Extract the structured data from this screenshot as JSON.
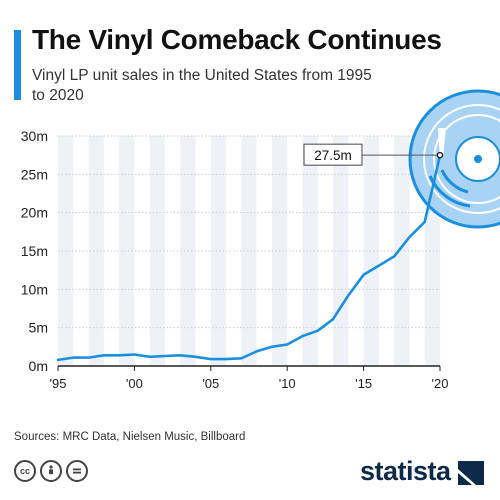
{
  "header": {
    "title": "The Vinyl Comeback Continues",
    "subtitle": "Vinyl LP unit sales in the United States from 1995 to 2020"
  },
  "footer": {
    "source": "Sources: MRC Data, Nielsen Music, Billboard",
    "license_icons": [
      "cc",
      "by",
      "nd"
    ],
    "brand": "statista"
  },
  "colors": {
    "accent": "#1a8fe0",
    "line": "#1a8fe0",
    "band": "#eef1f8",
    "vinyl_light": "#a9d3f5"
  },
  "chart_data": {
    "type": "line",
    "xlim": [
      1995,
      2020
    ],
    "ylim": [
      0,
      30
    ],
    "x_tick_values": [
      1995,
      2000,
      2005,
      2010,
      2015,
      2020
    ],
    "x_tick_labels": [
      "'95",
      "'00",
      "'05",
      "'10",
      "'15",
      "'20"
    ],
    "y_tick_values": [
      0,
      5,
      10,
      15,
      20,
      25,
      30
    ],
    "y_tick_labels": [
      "0m",
      "5m",
      "10m",
      "15m",
      "20m",
      "25m",
      "30m"
    ],
    "grid": true,
    "series": [
      {
        "x": [
          1995,
          1996,
          1997,
          1998,
          1999,
          2000,
          2001,
          2002,
          2003,
          2004,
          2005,
          2006,
          2007,
          2008,
          2009,
          2010,
          2011,
          2012,
          2013,
          2014,
          2015,
          2016,
          2017,
          2018,
          2019,
          2020
        ],
        "values": [
          0.8,
          1.1,
          1.1,
          1.4,
          1.4,
          1.5,
          1.2,
          1.3,
          1.4,
          1.2,
          0.9,
          0.9,
          1.0,
          1.9,
          2.5,
          2.8,
          3.9,
          4.6,
          6.1,
          9.2,
          11.9,
          13.1,
          14.3,
          16.8,
          18.8,
          27.5
        ]
      }
    ],
    "annotations": [
      {
        "x": 2020,
        "y": 27.5,
        "text": "27.5m"
      }
    ]
  }
}
